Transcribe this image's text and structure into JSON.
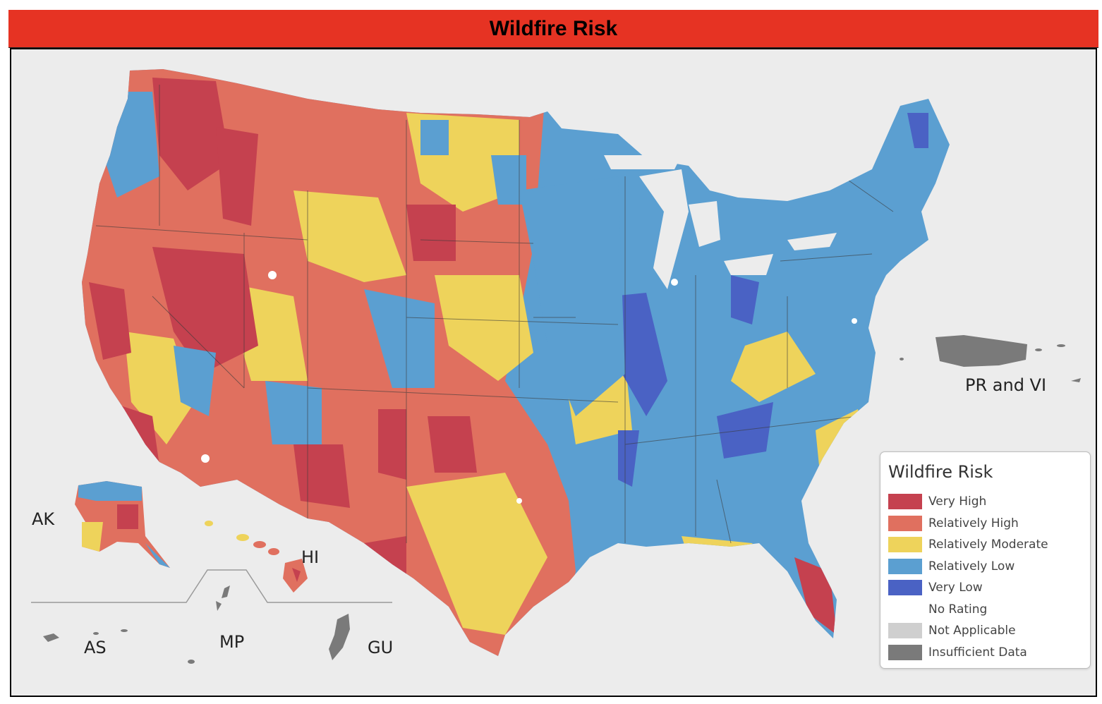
{
  "title": "Wildfire Risk",
  "colors": {
    "title_bar": "#e63323",
    "very_high": "#c5414f",
    "relatively_high": "#e0705f",
    "relatively_moderate": "#eed35b",
    "relatively_low": "#5b9fd1",
    "very_low": "#4a62c4",
    "no_rating": "#ffffff",
    "not_applicable": "#cfcfcf",
    "insufficient_data": "#7a7a7a",
    "background": "#ececec"
  },
  "territory_labels": {
    "ak": "AK",
    "hi": "HI",
    "as": "AS",
    "mp": "MP",
    "gu": "GU",
    "pr_vi": "PR and VI"
  },
  "legend": {
    "title": "Wildfire Risk",
    "items": [
      {
        "label": "Very High",
        "color": "#c5414f"
      },
      {
        "label": "Relatively High",
        "color": "#e0705f"
      },
      {
        "label": "Relatively Moderate",
        "color": "#eed35b"
      },
      {
        "label": "Relatively Low",
        "color": "#5b9fd1"
      },
      {
        "label": "Very Low",
        "color": "#4a62c4"
      },
      {
        "label": "No Rating",
        "color": "#ffffff"
      },
      {
        "label": "Not Applicable",
        "color": "#cfcfcf"
      },
      {
        "label": "Insufficient Data",
        "color": "#7a7a7a"
      }
    ]
  }
}
